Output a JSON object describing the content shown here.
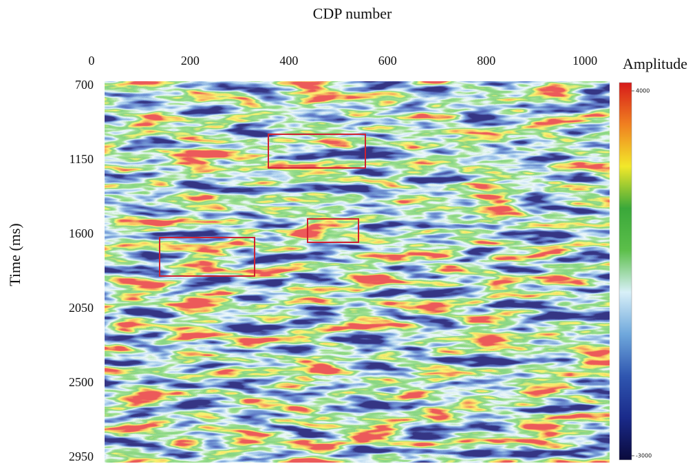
{
  "chart_data": {
    "type": "heatmap",
    "title": "CDP number",
    "y_label": "Time (ms)",
    "colorbar_label": "Amplitude",
    "xlim": [
      0,
      1050
    ],
    "xticks": [
      0,
      200,
      400,
      600,
      800,
      1000
    ],
    "ylim": [
      700,
      2950
    ],
    "yticks": [
      700,
      1150,
      1600,
      2050,
      2500,
      2950
    ],
    "clim": [
      -3000,
      4000
    ],
    "cticks": [
      -3000,
      4000
    ],
    "colormap": [
      "#0a0a3c",
      "#1a2a8a",
      "#2f56b0",
      "#6fa8dc",
      "#d8f0f8",
      "#5cbf4a",
      "#3aa83a",
      "#f2e82a",
      "#f08020",
      "#d61a1a"
    ]
  }
}
